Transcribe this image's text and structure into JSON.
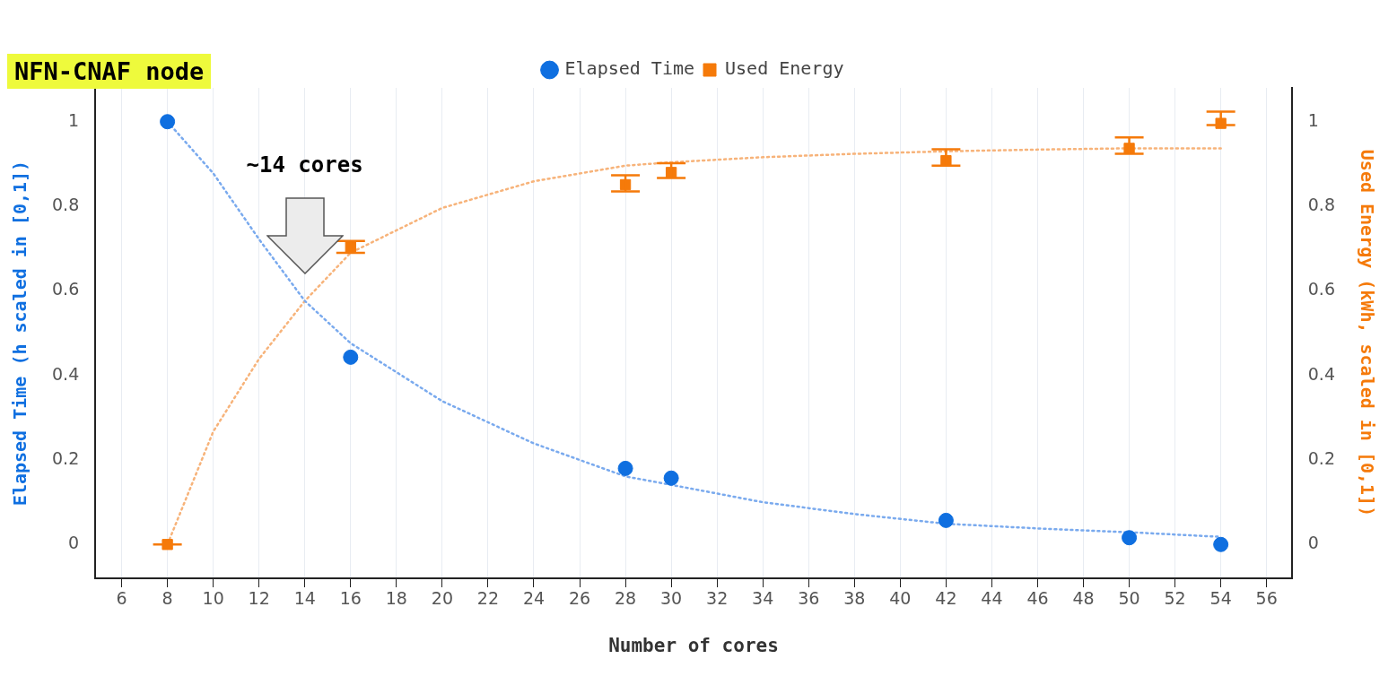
{
  "chart_data": {
    "type": "scatter",
    "title": "NFN-CNAF node",
    "xlabel": "Number of cores",
    "ylabel": "Elapsed Time (h scaled in [0,1])",
    "y2label": "Used Energy (kWh, scaled in [0,1])",
    "x": [
      8,
      16,
      28,
      30,
      42,
      50,
      54
    ],
    "series": [
      {
        "name": "Elapsed Time",
        "color": "#0f6fe0",
        "marker": "circle",
        "values": [
          1,
          0.443,
          0.18,
          0.157,
          0.057,
          0.016,
          0
        ]
      },
      {
        "name": "Used Energy",
        "axis": "y2",
        "color": "#f57a0a",
        "marker": "square",
        "values": [
          0,
          0.704,
          0.851,
          0.88,
          0.908,
          0.937,
          0.996
        ],
        "errors": [
          [
            0,
            0
          ],
          [
            0.69,
            0.718
          ],
          [
            0.835,
            0.873
          ],
          [
            0.867,
            0.902
          ],
          [
            0.896,
            0.935
          ],
          [
            0.924,
            0.963
          ],
          [
            0.992,
            1.024
          ]
        ]
      },
      {
        "type": "line",
        "color": "#7aaaee",
        "marker": "none",
        "line_style": "dotted",
        "x": [
          8,
          10,
          12,
          14,
          16,
          20,
          24,
          28,
          30,
          34,
          38,
          42,
          46,
          50,
          54
        ],
        "values": [
          1,
          0.878,
          0.722,
          0.576,
          0.476,
          0.339,
          0.239,
          0.161,
          0.141,
          0.1,
          0.072,
          0.049,
          0.038,
          0.029,
          0.018
        ]
      },
      {
        "type": "line",
        "axis": "y2",
        "color": "#f7b37a",
        "marker": "none",
        "line_style": "dotted",
        "x": [
          8,
          10,
          12,
          14,
          16,
          20,
          24,
          28,
          30,
          34,
          38,
          42,
          46,
          50,
          54
        ],
        "values": [
          0,
          0.267,
          0.439,
          0.576,
          0.69,
          0.796,
          0.859,
          0.896,
          0.904,
          0.916,
          0.924,
          0.93,
          0.934,
          0.937,
          0.937
        ]
      }
    ],
    "annotations": [
      "~14 cores"
    ],
    "xlim": [
      4.85,
      57.1
    ],
    "xticks": [
      6,
      8,
      10,
      12,
      14,
      16,
      18,
      20,
      22,
      24,
      26,
      28,
      30,
      32,
      34,
      36,
      38,
      40,
      42,
      44,
      46,
      48,
      50,
      52,
      54,
      56
    ],
    "ylim": [
      -0.08,
      1.08
    ],
    "yticks": [
      0,
      0.2,
      0.4,
      0.6,
      0.8,
      1
    ],
    "y2lim": [
      -0.08,
      1.08
    ],
    "y2ticks": [
      0,
      0.2,
      0.4,
      0.6,
      0.8,
      1
    ],
    "grid": "x",
    "legend": "top"
  }
}
